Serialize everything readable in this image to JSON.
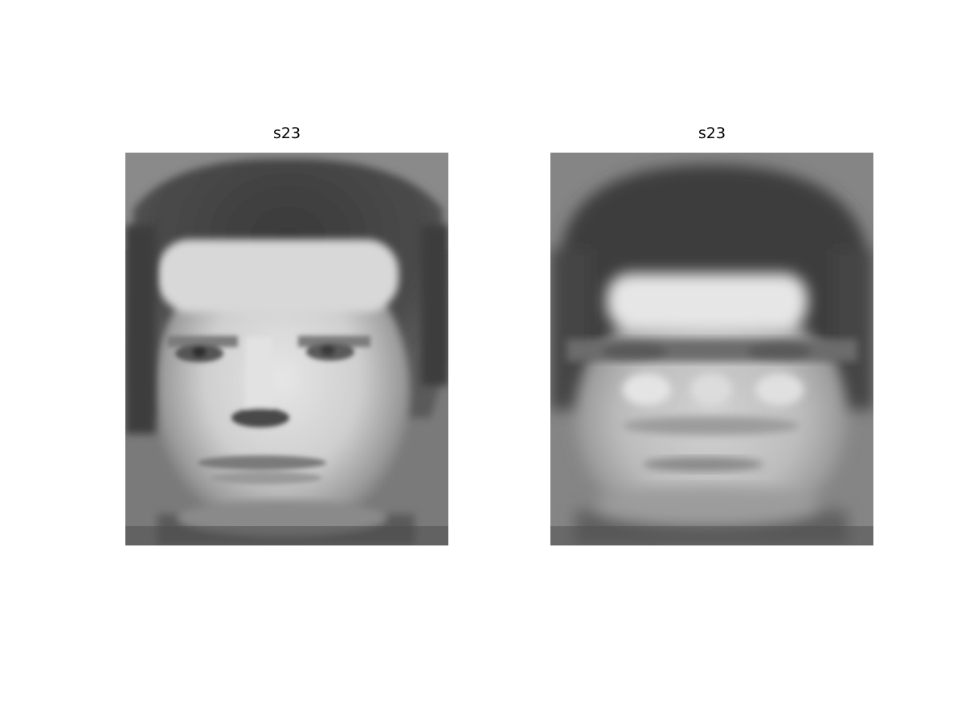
{
  "figure": {
    "background": "#ffffff",
    "panels": [
      {
        "title": "s23",
        "image": "original-face-grayscale"
      },
      {
        "title": "s23",
        "image": "reconstructed-face-grayscale"
      }
    ]
  }
}
